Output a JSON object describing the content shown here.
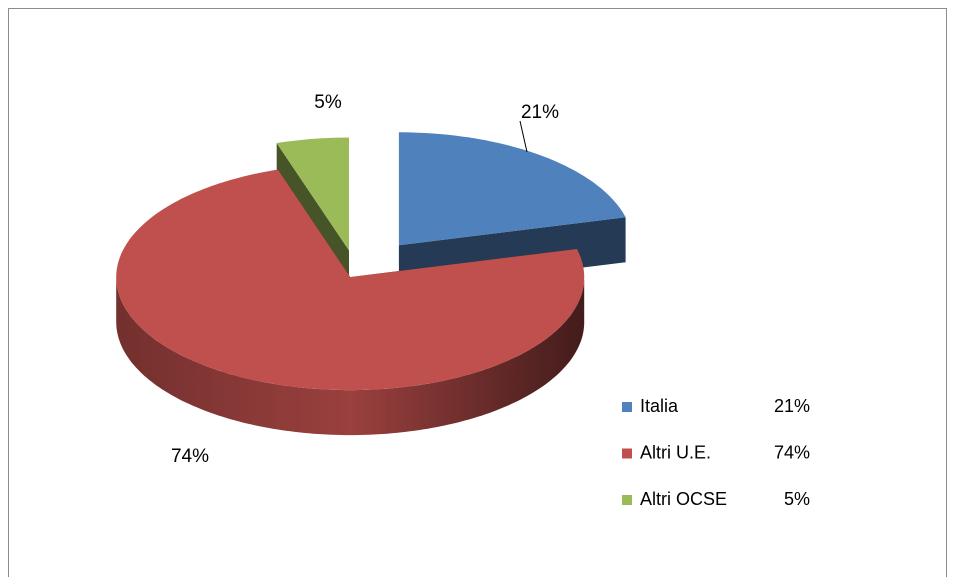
{
  "chart_data": {
    "type": "pie3d",
    "categories": [
      "Italia",
      "Altri U.E.",
      "Altri OCSE"
    ],
    "values": [
      21,
      74,
      5
    ],
    "value_labels": [
      "21%",
      "74%",
      "5%"
    ],
    "colors": [
      "#4f81bd",
      "#c0504d",
      "#9bbb59"
    ],
    "legend": "right"
  }
}
